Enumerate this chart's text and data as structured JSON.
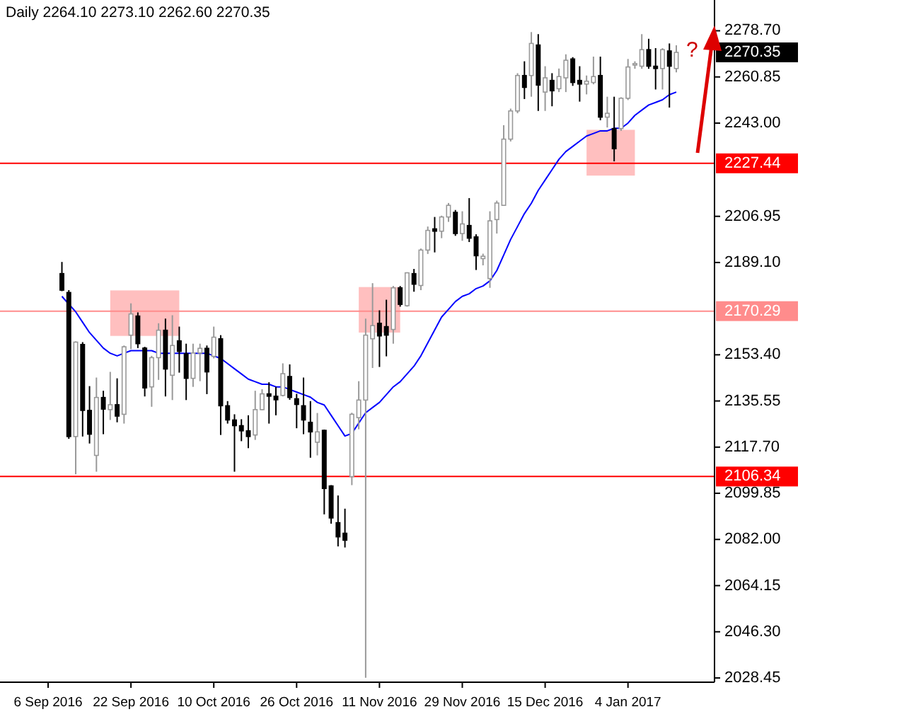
{
  "chart_data": {
    "type": "candlestick",
    "title": "Daily  2264.10 2273.10 2262.60 2270.35",
    "categories": [
      "6 Sep 2016",
      null,
      null,
      null,
      null,
      null,
      null,
      null,
      null,
      null,
      null,
      null,
      "22 Sep 2016",
      null,
      null,
      null,
      null,
      null,
      null,
      null,
      null,
      null,
      null,
      null,
      "10 Oct 2016",
      null,
      null,
      null,
      null,
      null,
      null,
      null,
      null,
      null,
      null,
      null,
      "26 Oct 2016",
      null,
      null,
      null,
      null,
      null,
      null,
      null,
      null,
      null,
      null,
      null,
      "11 Nov 2016",
      null,
      null,
      null,
      null,
      null,
      null,
      null,
      null,
      null,
      null,
      null,
      "29 Nov 2016",
      null,
      null,
      null,
      null,
      null,
      null,
      null,
      null,
      null,
      null,
      null,
      "15 Dec 2016",
      null,
      null,
      null,
      null,
      null,
      null,
      null,
      null,
      null,
      null,
      null,
      "4 Jan 2017",
      null,
      null,
      null,
      null,
      null,
      null,
      null
    ],
    "ohlc": [
      null,
      null,
      [
        2184.8,
        2189.3,
        2178.0,
        2178.4
      ],
      [
        2177.5,
        2178.4,
        2120.9,
        2121.8
      ],
      [
        2121.8,
        2158.6,
        2107.2,
        2158.3
      ],
      [
        2157.4,
        2158.3,
        2121.8,
        2131.9
      ],
      [
        2131.9,
        2141.3,
        2119.1,
        2122.7
      ],
      [
        2114.5,
        2144.6,
        2108.2,
        2136.9
      ],
      [
        2136.9,
        2139.5,
        2122.7,
        2132.4
      ],
      [
        2132.2,
        2146.8,
        2128.2,
        2134.1
      ],
      [
        2134.1,
        2144.3,
        2127.3,
        2129.7
      ],
      [
        2130.4,
        2157.0,
        2126.8,
        2156.5
      ],
      [
        2161.0,
        2173.3,
        2155.6,
        2169.2
      ],
      [
        2168.4,
        2169.8,
        2156.0,
        2157.7
      ],
      [
        2156.0,
        2156.5,
        2137.3,
        2140.6
      ],
      [
        2141.0,
        2153.0,
        2133.3,
        2152.3
      ],
      [
        2152.3,
        2165.6,
        2143.7,
        2162.9
      ],
      [
        2162.9,
        2167.4,
        2137.3,
        2147.9
      ],
      [
        2145.5,
        2168.7,
        2135.9,
        2157.0
      ],
      [
        2158.8,
        2164.3,
        2146.5,
        2154.7
      ],
      [
        2153.8,
        2157.7,
        2135.9,
        2144.3
      ],
      [
        2144.3,
        2157.7,
        2141.0,
        2154.1
      ],
      [
        2154.1,
        2157.7,
        2143.2,
        2155.9
      ],
      [
        2155.9,
        2157.0,
        2138.2,
        2146.8
      ],
      [
        2152.8,
        2164.3,
        2152.0,
        2160.2
      ],
      [
        2159.6,
        2161.0,
        2122.4,
        2133.7
      ],
      [
        2133.7,
        2135.5,
        2126.8,
        2128.2
      ],
      [
        2128.2,
        2130.4,
        2108.2,
        2126.0
      ],
      [
        2126.0,
        2128.5,
        2120.0,
        2124.0
      ],
      [
        2124.0,
        2130.0,
        2117.3,
        2121.8
      ],
      [
        2122.4,
        2139.5,
        2120.5,
        2132.2
      ],
      [
        2132.2,
        2140.1,
        2132.0,
        2138.3
      ],
      [
        2138.3,
        2142.8,
        2126.8,
        2137.4
      ],
      [
        2137.4,
        2141.0,
        2130.0,
        2136.0
      ],
      [
        2137.7,
        2150.1,
        2137.3,
        2146.1
      ],
      [
        2145.0,
        2149.7,
        2136.0,
        2136.9
      ],
      [
        2136.4,
        2138.3,
        2125.0,
        2134.2
      ],
      [
        2133.7,
        2144.6,
        2122.7,
        2128.2
      ],
      [
        2127.3,
        2135.5,
        2113.6,
        2123.6
      ],
      [
        2119.6,
        2130.9,
        2114.5,
        2123.6
      ],
      [
        2124.2,
        2124.5,
        2091.7,
        2101.7
      ],
      [
        2102.7,
        2103.0,
        2088.1,
        2090.3
      ],
      [
        2088.5,
        2099.0,
        2079.3,
        2083.0
      ],
      [
        2084.4,
        2093.9,
        2078.9,
        2081.7
      ],
      [
        2106.3,
        2131.0,
        2103.0,
        2130.4
      ],
      [
        2129.1,
        2143.2,
        2124.6,
        2135.9
      ],
      [
        2135.9,
        2167.4,
        2028.5,
        2161.0
      ],
      [
        2159.6,
        2181.1,
        2148.3,
        2164.7
      ],
      [
        2165.6,
        2170.6,
        2148.7,
        2160.7
      ],
      [
        2164.3,
        2174.7,
        2152.8,
        2161.0
      ],
      [
        2163.2,
        2180.0,
        2157.7,
        2179.3
      ],
      [
        2179.3,
        2180.0,
        2172.0,
        2172.9
      ],
      [
        2172.4,
        2185.3,
        2172.0,
        2185.1
      ],
      [
        2184.8,
        2186.6,
        2177.8,
        2180.7
      ],
      [
        2180.2,
        2194.5,
        2178.4,
        2193.9
      ],
      [
        2193.9,
        2203.0,
        2192.4,
        2201.5
      ],
      [
        2202.1,
        2206.7,
        2193.0,
        2201.2
      ],
      [
        2201.2,
        2207.2,
        2198.5,
        2206.7
      ],
      [
        2206.7,
        2212.1,
        2204.8,
        2211.2
      ],
      [
        2208.5,
        2209.4,
        2199.4,
        2200.3
      ],
      [
        2200.3,
        2208.9,
        2197.5,
        2204.0
      ],
      [
        2203.4,
        2214.0,
        2197.0,
        2198.5
      ],
      [
        2199.0,
        2200.0,
        2186.2,
        2191.7
      ],
      [
        2190.6,
        2192.5,
        2188.0,
        2191.5
      ],
      [
        2182.9,
        2208.9,
        2179.3,
        2205.2
      ],
      [
        2205.7,
        2213.0,
        2200.3,
        2212.1
      ],
      [
        2211.2,
        2242.2,
        2211.0,
        2236.8
      ],
      [
        2236.8,
        2248.6,
        2235.9,
        2247.7
      ],
      [
        2247.7,
        2262.3,
        2246.8,
        2261.4
      ],
      [
        2261.4,
        2266.9,
        2252.3,
        2256.8
      ],
      [
        2261.4,
        2278.2,
        2253.2,
        2273.8
      ],
      [
        2273.2,
        2277.4,
        2247.7,
        2257.7
      ],
      [
        2255.0,
        2265.0,
        2247.7,
        2260.5
      ],
      [
        2259.5,
        2262.3,
        2249.5,
        2255.5
      ],
      [
        2256.3,
        2264.1,
        2255.0,
        2261.0
      ],
      [
        2260.5,
        2269.6,
        2255.0,
        2267.3
      ],
      [
        2267.8,
        2268.5,
        2257.4,
        2258.7
      ],
      [
        2259.5,
        2265.0,
        2251.3,
        2258.1
      ],
      [
        2258.1,
        2261.4,
        2254.1,
        2259.2
      ],
      [
        2258.7,
        2268.7,
        2258.0,
        2261.0
      ],
      [
        2261.4,
        2268.7,
        2244.1,
        2245.3
      ],
      [
        2245.3,
        2253.2,
        2241.3,
        2246.8
      ],
      [
        2240.9,
        2253.2,
        2228.2,
        2233.1
      ],
      [
        2240.9,
        2253.0,
        2240.0,
        2252.6
      ],
      [
        2252.6,
        2267.8,
        2251.9,
        2264.7
      ],
      [
        2265.5,
        2266.9,
        2264.0,
        2266.0
      ],
      [
        2265.0,
        2277.4,
        2264.0,
        2271.4
      ],
      [
        2271.4,
        2275.6,
        2264.0,
        2265.0
      ],
      [
        2265.0,
        2272.0,
        2256.0,
        2264.1
      ],
      [
        2264.1,
        2272.0,
        2256.0,
        2271.4
      ],
      [
        2270.9,
        2273.8,
        2249.0,
        2265.0
      ],
      [
        2264.1,
        2273.1,
        2262.6,
        2270.35
      ]
    ],
    "series": [
      {
        "type": "line",
        "color": "#0000ff",
        "values": [
          null,
          null,
          2176,
          2173,
          2170,
          2166,
          2162,
          2159,
          2156,
          2154,
          2153,
          2154,
          2155,
          2155,
          2155,
          2155,
          2154,
          2154,
          2154,
          2154,
          2154,
          2154,
          2154,
          2154,
          2153,
          2152,
          2150,
          2148,
          2146,
          2144,
          2143,
          2142,
          2142,
          2141,
          2141,
          2140,
          2139,
          2138,
          2137,
          2135,
          2134,
          2130,
          2126,
          2122,
          2123,
          2127,
          2131,
          2133,
          2135,
          2138,
          2141,
          2143,
          2146,
          2149,
          2153,
          2158,
          2163,
          2168,
          2171,
          2174,
          2176,
          2177,
          2179,
          2180,
          2182,
          2186,
          2192,
          2198,
          2203,
          2208,
          2212,
          2217,
          2221,
          2225,
          2229,
          2232,
          2234,
          2236,
          2238,
          2239,
          2240,
          2240,
          2241,
          2241,
          2243,
          2246,
          2248,
          2250,
          2251,
          2252,
          2254,
          2255
        ]
      }
    ],
    "ylim": [
      2026.8,
      2290.6
    ],
    "yticks": [
      {
        "value": 2278.7,
        "label": "2278.70"
      },
      {
        "value": 2260.85,
        "label": "2260.85"
      },
      {
        "value": 2243,
        "label": "2243.00"
      },
      {
        "value": 2206.95,
        "label": "2206.95"
      },
      {
        "value": 2189.1,
        "label": "2189.10"
      },
      {
        "value": 2153.4,
        "label": "2153.40"
      },
      {
        "value": 2135.55,
        "label": "2135.55"
      },
      {
        "value": 2117.7,
        "label": "2117.70"
      },
      {
        "value": 2099.85,
        "label": "2099.85"
      },
      {
        "value": 2082,
        "label": "2082.00"
      },
      {
        "value": 2064.15,
        "label": "2064.15"
      },
      {
        "value": 2046.3,
        "label": "2046.30"
      },
      {
        "value": 2028.45,
        "label": "2028.45"
      }
    ],
    "ref_lines": [
      {
        "axis": "y",
        "value": 2227.44,
        "label": "2227.44",
        "color": "#ff0000"
      },
      {
        "axis": "y",
        "value": 2170.29,
        "label": "2170.29",
        "color": "#ff8c8c"
      },
      {
        "axis": "y",
        "value": 2106.34,
        "label": "2106.34",
        "color": "#ff0000"
      }
    ],
    "annotations": [
      "2270.35",
      "?"
    ]
  }
}
